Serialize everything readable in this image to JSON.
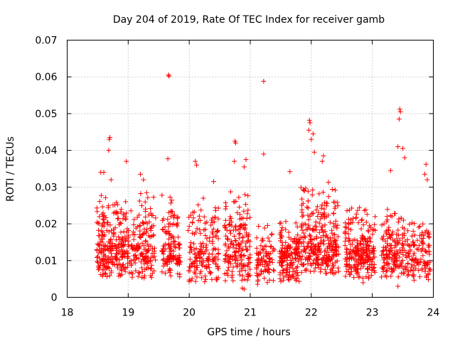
{
  "chart_data": {
    "type": "scatter",
    "title": "Day 204 of 2019, Rate Of TEC Index for receiver gamb",
    "xlabel": "GPS time / hours",
    "ylabel": "ROTI / TECUs",
    "xlim": [
      18,
      24
    ],
    "ylim": [
      0,
      0.07
    ],
    "xticks": [
      18,
      19,
      20,
      21,
      22,
      23,
      24
    ],
    "xtick_labels": [
      "18",
      "19",
      "20",
      "21",
      "22",
      "23",
      "24"
    ],
    "yticks": [
      0,
      0.01,
      0.02,
      0.03,
      0.04,
      0.05,
      0.06,
      0.07
    ],
    "ytick_labels": [
      "0",
      "0.01",
      "0.02",
      "0.03",
      "0.04",
      "0.05",
      "0.06",
      "0.07"
    ],
    "grid": true,
    "marker": "+",
    "series": [
      {
        "name": "ROTI",
        "color": "#ff0000",
        "clusters": [
          {
            "x": [
              18.48,
              18.92
            ],
            "base": 0.0095,
            "spread": 0.016,
            "n": 220
          },
          {
            "x": [
              18.92,
              19.45
            ],
            "base": 0.009,
            "spread": 0.018,
            "n": 200
          },
          {
            "x": [
              19.55,
              19.85
            ],
            "base": 0.0095,
            "spread": 0.016,
            "n": 130
          },
          {
            "x": [
              19.98,
              20.48
            ],
            "base": 0.008,
            "spread": 0.016,
            "n": 170
          },
          {
            "x": [
              20.58,
              21.0
            ],
            "base": 0.0085,
            "spread": 0.017,
            "n": 180
          },
          {
            "x": [
              21.1,
              21.4
            ],
            "base": 0.007,
            "spread": 0.01,
            "n": 90
          },
          {
            "x": [
              21.48,
              21.82
            ],
            "base": 0.008,
            "spread": 0.01,
            "n": 160
          },
          {
            "x": [
              21.82,
              22.45
            ],
            "base": 0.01,
            "spread": 0.018,
            "n": 300
          },
          {
            "x": [
              22.55,
              23.05
            ],
            "base": 0.009,
            "spread": 0.013,
            "n": 240
          },
          {
            "x": [
              23.15,
              23.95
            ],
            "base": 0.0085,
            "spread": 0.012,
            "n": 290
          }
        ],
        "peaks": [
          {
            "x": 18.55,
            "y": 0.034
          },
          {
            "x": 18.6,
            "y": 0.034
          },
          {
            "x": 18.7,
            "y": 0.0435
          },
          {
            "x": 18.69,
            "y": 0.043
          },
          {
            "x": 18.68,
            "y": 0.04
          },
          {
            "x": 18.72,
            "y": 0.032
          },
          {
            "x": 18.97,
            "y": 0.037
          },
          {
            "x": 19.2,
            "y": 0.0335
          },
          {
            "x": 19.25,
            "y": 0.032
          },
          {
            "x": 19.66,
            "y": 0.0605
          },
          {
            "x": 19.67,
            "y": 0.0602
          },
          {
            "x": 19.65,
            "y": 0.0377
          },
          {
            "x": 20.1,
            "y": 0.037
          },
          {
            "x": 20.12,
            "y": 0.036
          },
          {
            "x": 20.4,
            "y": 0.0315
          },
          {
            "x": 20.75,
            "y": 0.0425
          },
          {
            "x": 20.76,
            "y": 0.042
          },
          {
            "x": 20.74,
            "y": 0.037
          },
          {
            "x": 20.93,
            "y": 0.0375
          },
          {
            "x": 20.9,
            "y": 0.0355
          },
          {
            "x": 21.22,
            "y": 0.0588
          },
          {
            "x": 21.22,
            "y": 0.039
          },
          {
            "x": 21.65,
            "y": 0.0342
          },
          {
            "x": 21.97,
            "y": 0.0482
          },
          {
            "x": 21.98,
            "y": 0.0475
          },
          {
            "x": 21.96,
            "y": 0.0455
          },
          {
            "x": 22.03,
            "y": 0.0445
          },
          {
            "x": 22.0,
            "y": 0.043
          },
          {
            "x": 22.05,
            "y": 0.0395
          },
          {
            "x": 22.2,
            "y": 0.0385
          },
          {
            "x": 22.18,
            "y": 0.037
          },
          {
            "x": 23.45,
            "y": 0.0512
          },
          {
            "x": 23.46,
            "y": 0.0505
          },
          {
            "x": 23.44,
            "y": 0.0485
          },
          {
            "x": 23.42,
            "y": 0.041
          },
          {
            "x": 23.5,
            "y": 0.0405
          },
          {
            "x": 23.53,
            "y": 0.038
          },
          {
            "x": 23.3,
            "y": 0.0345
          },
          {
            "x": 23.88,
            "y": 0.0362
          },
          {
            "x": 23.86,
            "y": 0.0335
          },
          {
            "x": 23.9,
            "y": 0.032
          },
          {
            "x": 20.87,
            "y": 0.0025
          },
          {
            "x": 20.9,
            "y": 0.0022
          },
          {
            "x": 23.42,
            "y": 0.003
          },
          {
            "x": 22.85,
            "y": 0.004
          }
        ]
      }
    ]
  }
}
